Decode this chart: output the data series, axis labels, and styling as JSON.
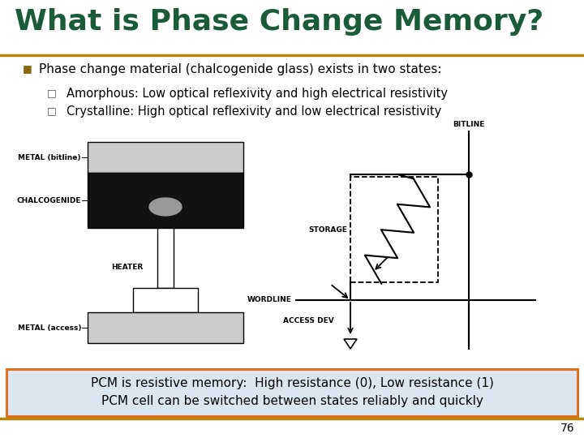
{
  "title": "What is Phase Change Memory?",
  "title_color": "#1a5c3a",
  "title_fontsize": 26,
  "bg_color": "#ffffff",
  "separator_color": "#b8860b",
  "bullet1": "Phase change material (chalcogenide glass) exists in two states:",
  "bullet1_color": "#000000",
  "bullet1_marker_color": "#8b6914",
  "sub1": "Amorphous: Low optical reflexivity and high electrical resistivity",
  "sub2": "Crystalline: High optical reflexivity and low electrical resistivity",
  "sub_color": "#000000",
  "box_text1": "PCM is resistive memory:  High resistance (0), Low resistance (1)",
  "box_text2": "PCM cell can be switched between states reliably and quickly",
  "box_bg": "#dce6f1",
  "box_border": "#e07020",
  "page_num": "76",
  "footer_color": "#b8860b"
}
